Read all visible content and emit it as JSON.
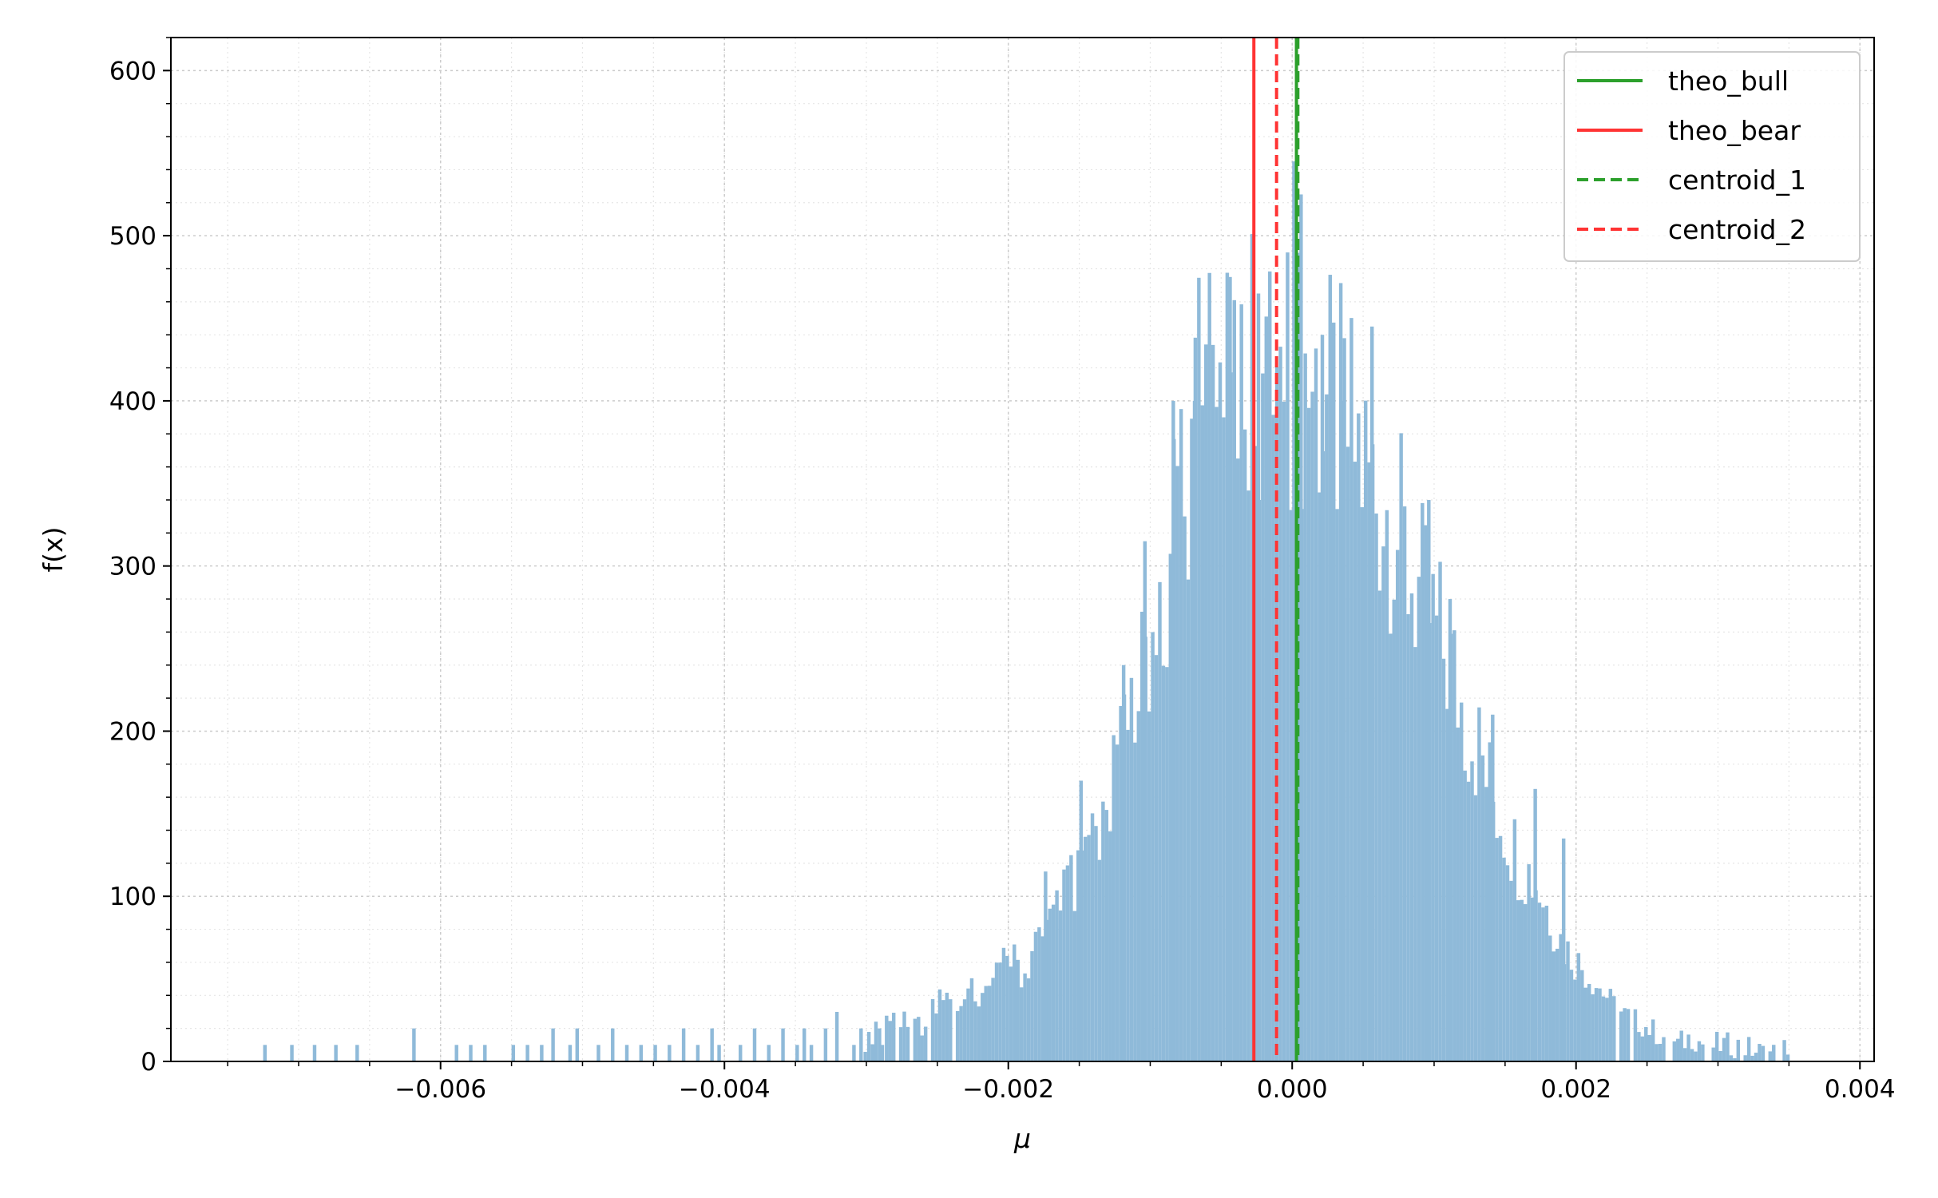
{
  "chart_data": {
    "type": "histogram",
    "title": "",
    "xlabel": "μ",
    "ylabel": "f(x)",
    "xlim": [
      -0.0079,
      0.0041
    ],
    "ylim": [
      0,
      620
    ],
    "x_ticks": [
      {
        "value": -0.006,
        "label": "−0.006"
      },
      {
        "value": -0.004,
        "label": "−0.004"
      },
      {
        "value": -0.002,
        "label": "−0.002"
      },
      {
        "value": 0.0,
        "label": "0.000"
      },
      {
        "value": 0.002,
        "label": "0.002"
      },
      {
        "value": 0.004,
        "label": "0.004"
      }
    ],
    "y_ticks": [
      {
        "value": 0,
        "label": "0"
      },
      {
        "value": 100,
        "label": "100"
      },
      {
        "value": 200,
        "label": "200"
      },
      {
        "value": 300,
        "label": "300"
      },
      {
        "value": 400,
        "label": "400"
      },
      {
        "value": 500,
        "label": "500"
      },
      {
        "value": 600,
        "label": "600"
      }
    ],
    "grid": true,
    "minor_grid": true,
    "histogram": {
      "color": "#8fbad9",
      "bin_width": 2.5e-05,
      "sparse_bins": [
        {
          "x": -0.00725,
          "y": 10
        },
        {
          "x": -0.00706,
          "y": 10
        },
        {
          "x": -0.0069,
          "y": 10
        },
        {
          "x": -0.00675,
          "y": 10
        },
        {
          "x": -0.0066,
          "y": 10
        },
        {
          "x": -0.0062,
          "y": 20
        },
        {
          "x": -0.0059,
          "y": 10
        },
        {
          "x": -0.0058,
          "y": 10
        },
        {
          "x": -0.0057,
          "y": 10
        },
        {
          "x": -0.0055,
          "y": 10
        },
        {
          "x": -0.0054,
          "y": 10
        },
        {
          "x": -0.0053,
          "y": 10
        },
        {
          "x": -0.00522,
          "y": 20
        },
        {
          "x": -0.0051,
          "y": 10
        },
        {
          "x": -0.00505,
          "y": 20
        },
        {
          "x": -0.0049,
          "y": 10
        },
        {
          "x": -0.0048,
          "y": 20
        },
        {
          "x": -0.0047,
          "y": 10
        },
        {
          "x": -0.0046,
          "y": 10
        },
        {
          "x": -0.0045,
          "y": 10
        },
        {
          "x": -0.0044,
          "y": 10
        },
        {
          "x": -0.0043,
          "y": 20
        },
        {
          "x": -0.0042,
          "y": 10
        },
        {
          "x": -0.0041,
          "y": 20
        },
        {
          "x": -0.00405,
          "y": 10
        },
        {
          "x": -0.0039,
          "y": 10
        },
        {
          "x": -0.0038,
          "y": 20
        },
        {
          "x": -0.0037,
          "y": 10
        },
        {
          "x": -0.0036,
          "y": 20
        },
        {
          "x": -0.0035,
          "y": 10
        },
        {
          "x": -0.00345,
          "y": 20
        },
        {
          "x": -0.0034,
          "y": 10
        },
        {
          "x": -0.0033,
          "y": 20
        },
        {
          "x": -0.00322,
          "y": 30
        },
        {
          "x": -0.0031,
          "y": 10
        },
        {
          "x": -0.00305,
          "y": 20
        },
        {
          "x": -0.00295,
          "y": 10
        },
        {
          "x": -0.0029,
          "y": 10
        }
      ],
      "dense_bins": [
        {
          "x": -0.00302,
          "y": 10
        },
        {
          "x": -0.0029,
          "y": 30
        },
        {
          "x": -0.0028,
          "y": 20
        },
        {
          "x": -0.0027,
          "y": 30
        },
        {
          "x": -0.0026,
          "y": 20
        },
        {
          "x": -0.0025,
          "y": 40
        },
        {
          "x": -0.0024,
          "y": 30
        },
        {
          "x": -0.0023,
          "y": 45
        },
        {
          "x": -0.0022,
          "y": 40
        },
        {
          "x": -0.0021,
          "y": 50
        },
        {
          "x": -0.002,
          "y": 65
        },
        {
          "x": -0.0019,
          "y": 45
        },
        {
          "x": -0.0018,
          "y": 70
        },
        {
          "x": -0.0017,
          "y": 90
        },
        {
          "x": -0.0016,
          "y": 100
        },
        {
          "x": -0.0015,
          "y": 110
        },
        {
          "x": -0.0014,
          "y": 140
        },
        {
          "x": -0.0013,
          "y": 160
        },
        {
          "x": -0.0012,
          "y": 190
        },
        {
          "x": -0.0011,
          "y": 230
        },
        {
          "x": -0.001,
          "y": 270
        },
        {
          "x": -0.0009,
          "y": 300
        },
        {
          "x": -0.0008,
          "y": 360
        },
        {
          "x": -0.0007,
          "y": 380
        },
        {
          "x": -0.0006,
          "y": 410
        },
        {
          "x": -0.0005,
          "y": 440
        },
        {
          "x": -0.0004,
          "y": 450
        },
        {
          "x": -0.0003,
          "y": 440
        },
        {
          "x": -0.0002,
          "y": 420
        },
        {
          "x": -0.0001,
          "y": 410
        },
        {
          "x": 0.0,
          "y": 410
        },
        {
          "x": 0.0001,
          "y": 420
        },
        {
          "x": 0.0002,
          "y": 400
        },
        {
          "x": 0.0003,
          "y": 390
        },
        {
          "x": 0.0004,
          "y": 380
        },
        {
          "x": 0.0005,
          "y": 360
        },
        {
          "x": 0.0006,
          "y": 340
        },
        {
          "x": 0.0007,
          "y": 330
        },
        {
          "x": 0.0008,
          "y": 300
        },
        {
          "x": 0.0009,
          "y": 280
        },
        {
          "x": 0.001,
          "y": 260
        },
        {
          "x": 0.0011,
          "y": 240
        },
        {
          "x": 0.0012,
          "y": 210
        },
        {
          "x": 0.0013,
          "y": 190
        },
        {
          "x": 0.0014,
          "y": 160
        },
        {
          "x": 0.0015,
          "y": 140
        },
        {
          "x": 0.0016,
          "y": 120
        },
        {
          "x": 0.0017,
          "y": 110
        },
        {
          "x": 0.0018,
          "y": 90
        },
        {
          "x": 0.0019,
          "y": 70
        },
        {
          "x": 0.002,
          "y": 60
        },
        {
          "x": 0.0021,
          "y": 50
        },
        {
          "x": 0.0022,
          "y": 40
        },
        {
          "x": 0.0023,
          "y": 30
        },
        {
          "x": 0.0024,
          "y": 25
        },
        {
          "x": 0.0025,
          "y": 20
        },
        {
          "x": 0.0026,
          "y": 15
        },
        {
          "x": 0.0027,
          "y": 10
        },
        {
          "x": 0.0028,
          "y": 15
        },
        {
          "x": 0.0029,
          "y": 10
        },
        {
          "x": 0.003,
          "y": 10
        },
        {
          "x": 0.0031,
          "y": 10
        },
        {
          "x": 0.0032,
          "y": 8
        },
        {
          "x": 0.0033,
          "y": 5
        },
        {
          "x": 0.0034,
          "y": 5
        },
        {
          "x": 0.0035,
          "y": 10
        }
      ],
      "peak_spikes": [
        {
          "x": -0.00045,
          "y": 475
        },
        {
          "x": -0.00025,
          "y": 465
        },
        {
          "x": 0.0,
          "y": 545
        },
        {
          "x": 5e-05,
          "y": 525
        },
        {
          "x": 0.00055,
          "y": 445
        },
        {
          "x": -0.0007,
          "y": 400
        },
        {
          "x": -0.00085,
          "y": 400
        },
        {
          "x": 0.0002,
          "y": 440
        },
        {
          "x": 0.00035,
          "y": 400
        },
        {
          "x": -0.0012,
          "y": 240
        },
        {
          "x": -0.0015,
          "y": 170
        },
        {
          "x": 0.0011,
          "y": 280
        },
        {
          "x": 0.0014,
          "y": 210
        },
        {
          "x": 0.0017,
          "y": 165
        },
        {
          "x": 0.0019,
          "y": 135
        },
        {
          "x": -0.00175,
          "y": 115
        },
        {
          "x": -0.00105,
          "y": 315
        },
        {
          "x": 0.00095,
          "y": 340
        }
      ]
    },
    "series": [
      {
        "name": "theo_bull",
        "type": "vline",
        "x": 3e-05,
        "color": "#2ca02c",
        "style": "solid"
      },
      {
        "name": "theo_bear",
        "type": "vline",
        "x": -0.00027,
        "color": "#ff3333",
        "style": "solid"
      },
      {
        "name": "centroid_1",
        "type": "vline",
        "x": 4e-05,
        "color": "#2ca02c",
        "style": "dashed"
      },
      {
        "name": "centroid_2",
        "type": "vline",
        "x": -0.00011,
        "color": "#ff3333",
        "style": "dashed"
      }
    ],
    "legend": {
      "position": "top-right",
      "entries": [
        "theo_bull",
        "theo_bear",
        "centroid_1",
        "centroid_2"
      ]
    }
  }
}
